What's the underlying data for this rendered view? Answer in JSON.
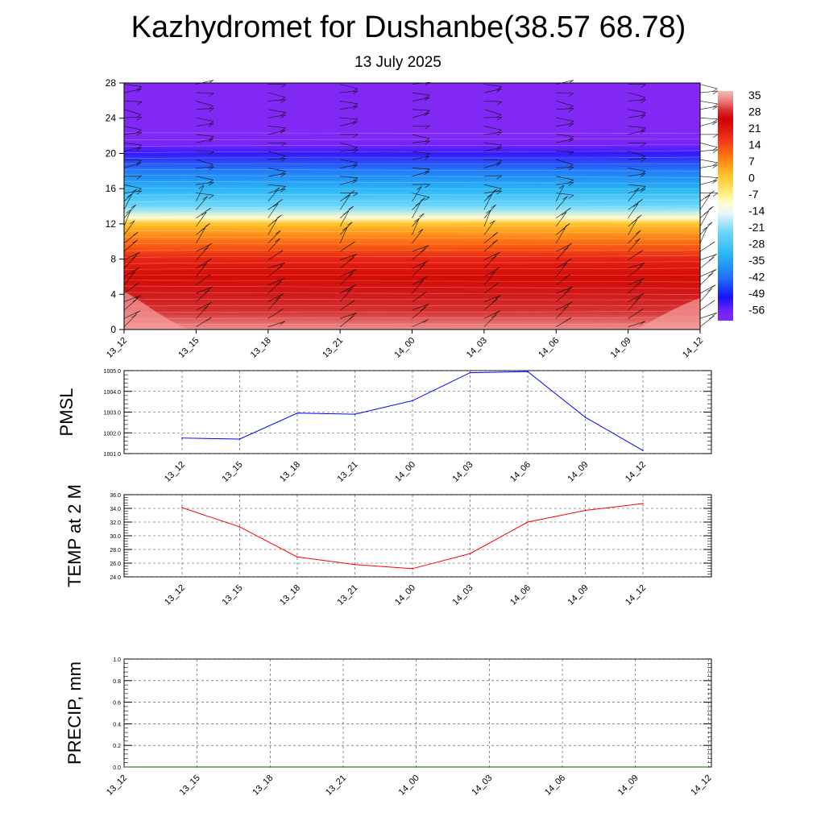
{
  "title": "Kazhydromet for Dushanbe(38.57 68.78)",
  "subtitle": "13 July 2025",
  "time_labels": [
    "13_12",
    "13_15",
    "13_18",
    "13_21",
    "14_00",
    "14_03",
    "14_06",
    "14_09",
    "14_12"
  ],
  "colors": {
    "pmsl_line": "#0000ff",
    "temp_line": "#ff0000",
    "precip_line": "#006400",
    "grid": "#555555"
  },
  "chart_data": [
    {
      "type": "heatmap",
      "name": "temperature_cross_section",
      "x_ticks": [
        "13_12",
        "13_15",
        "13_18",
        "13_21",
        "14_00",
        "14_03",
        "14_06",
        "14_09",
        "14_12"
      ],
      "y_ticks": [
        "0",
        "4",
        "8",
        "12",
        "16",
        "20",
        "24",
        "28"
      ],
      "ylim": [
        0,
        28
      ],
      "colorbar": {
        "labels": [
          "35",
          "28",
          "21",
          "14",
          "7",
          "0",
          "-7",
          "-14",
          "-21",
          "-28",
          "-35",
          "-42",
          "-49",
          "-56"
        ],
        "range": [
          -60,
          38
        ]
      },
      "temperature_profile": [
        {
          "z": 0,
          "t": 35
        },
        {
          "z": 2,
          "t": 30
        },
        {
          "z": 4,
          "t": 28
        },
        {
          "z": 6,
          "t": 24
        },
        {
          "z": 8,
          "t": 20
        },
        {
          "z": 10,
          "t": 11
        },
        {
          "z": 12,
          "t": 2
        },
        {
          "z": 12.7,
          "t": -10
        },
        {
          "z": 14,
          "t": -22
        },
        {
          "z": 16,
          "t": -32
        },
        {
          "z": 18,
          "t": -40
        },
        {
          "z": 20,
          "t": -52
        },
        {
          "z": 21,
          "t": -57
        },
        {
          "z": 22,
          "t": -60
        },
        {
          "z": 28,
          "t": -60
        }
      ],
      "wind_barbs": true
    },
    {
      "type": "line",
      "name": "PMSL",
      "ylabel": "PMSL",
      "ylim": [
        1001.0,
        1005.0
      ],
      "y_ticks": [
        "1001.0",
        "1002.0",
        "1003.0",
        "1004.0",
        "1005.0"
      ],
      "x": [
        "13_12",
        "13_15",
        "13_18",
        "13_21",
        "14_00",
        "14_03",
        "14_06",
        "14_09",
        "14_12"
      ],
      "values": [
        1001.75,
        1001.7,
        1002.95,
        1002.9,
        1003.55,
        1004.9,
        1004.95,
        1002.75,
        1001.15
      ]
    },
    {
      "type": "line",
      "name": "TEMP at 2 M",
      "ylabel": "TEMP at 2 M",
      "ylim": [
        24.0,
        36.0
      ],
      "y_ticks": [
        "24.0",
        "26.0",
        "28.0",
        "30.0",
        "32.0",
        "34.0",
        "36.0"
      ],
      "x": [
        "13_12",
        "13_15",
        "13_18",
        "13_21",
        "14_00",
        "14_03",
        "14_06",
        "14_09",
        "14_12"
      ],
      "values": [
        34.1,
        31.3,
        26.9,
        25.8,
        25.2,
        27.4,
        32.0,
        33.7,
        34.7
      ]
    },
    {
      "type": "line",
      "name": "PRECIP, mm",
      "ylabel": "PRECIP, mm",
      "ylim": [
        0.0,
        1.0
      ],
      "y_ticks": [
        "0.0",
        "0.2",
        "0.4",
        "0.6",
        "0.8",
        "1.0"
      ],
      "x": [
        "13_12",
        "13_15",
        "13_18",
        "13_21",
        "14_00",
        "14_03",
        "14_06",
        "14_09",
        "14_12"
      ],
      "values": [
        0,
        0,
        0,
        0,
        0,
        0,
        0,
        0,
        0
      ]
    }
  ]
}
